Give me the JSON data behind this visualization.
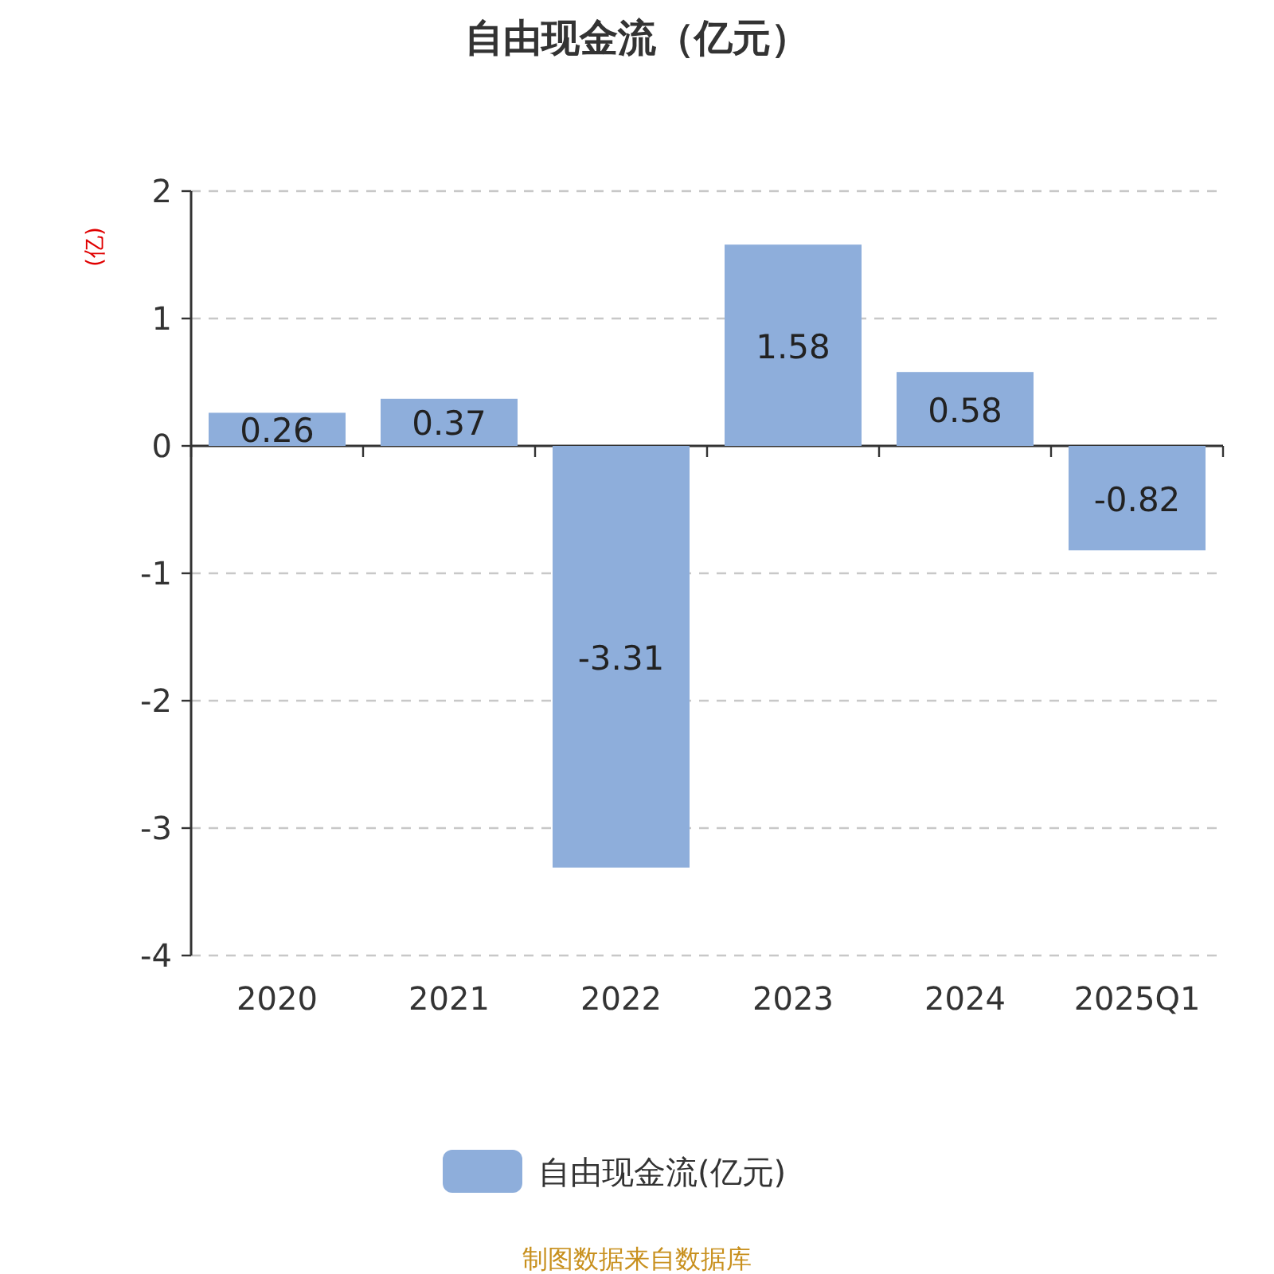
{
  "chart_data": {
    "type": "bar",
    "title": "自由现金流（亿元）",
    "ylabel": "(亿)",
    "categories": [
      "2020",
      "2021",
      "2022",
      "2023",
      "2024",
      "2025Q1"
    ],
    "series": [
      {
        "name": "自由现金流(亿元)",
        "color": "#8eaedb",
        "values": [
          0.26,
          0.37,
          -3.31,
          1.58,
          0.58,
          -0.82
        ]
      }
    ],
    "ylim": [
      -4,
      2
    ],
    "yticks": [
      -4,
      -3,
      -2,
      -1,
      0,
      1,
      2
    ],
    "grid": "y",
    "legend": "bottom",
    "data_labels": true,
    "annotations": [
      "制图数据来自数据库"
    ]
  }
}
